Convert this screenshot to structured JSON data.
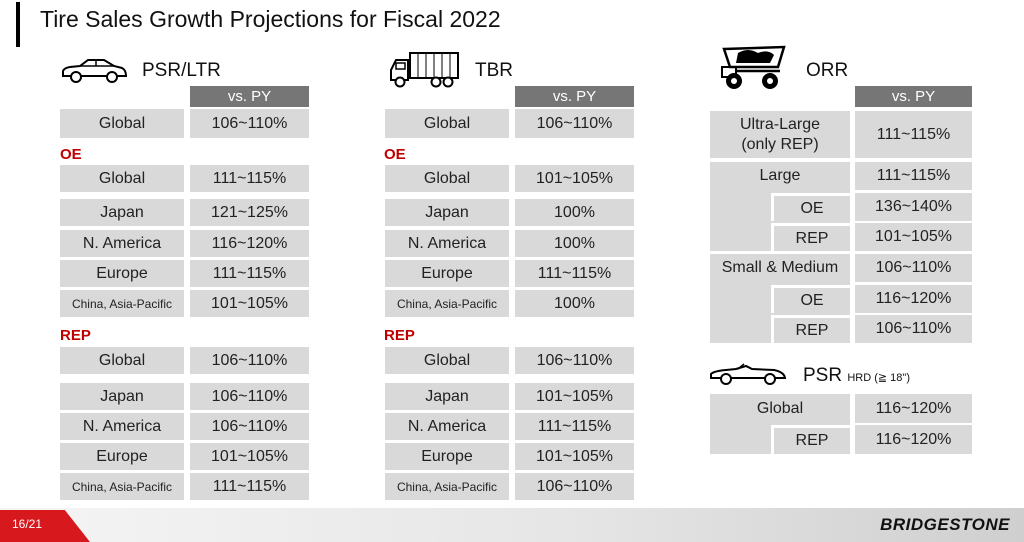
{
  "title": "Tire Sales Growth Projections for Fiscal 2022",
  "page_number": "16/21",
  "brand": "BRIDGESTONE",
  "colors": {
    "accent_red": "#c00000",
    "header_gray": "#767676",
    "cell_gray": "#d9d9d9"
  },
  "psr": {
    "heading": "PSR/LTR",
    "col_header": "vs. PY",
    "global_label": "Global",
    "global_value": "106~110%",
    "oe_label": "OE",
    "oe": [
      {
        "label": "Global",
        "value": "111~115%"
      },
      {
        "label": "Japan",
        "value": "121~125%"
      },
      {
        "label": "N. America",
        "value": "116~120%"
      },
      {
        "label": "Europe",
        "value": "111~115%"
      },
      {
        "label": "China, Asia-Pacific",
        "value": "101~105%"
      }
    ],
    "rep_label": "REP",
    "rep": [
      {
        "label": "Global",
        "value": "106~110%"
      },
      {
        "label": "Japan",
        "value": "106~110%"
      },
      {
        "label": "N. America",
        "value": "106~110%"
      },
      {
        "label": "Europe",
        "value": "101~105%"
      },
      {
        "label": "China, Asia-Pacific",
        "value": "111~115%"
      }
    ]
  },
  "tbr": {
    "heading": "TBR",
    "col_header": "vs. PY",
    "global_label": "Global",
    "global_value": "106~110%",
    "oe_label": "OE",
    "oe": [
      {
        "label": "Global",
        "value": "101~105%"
      },
      {
        "label": "Japan",
        "value": "100%"
      },
      {
        "label": "N. America",
        "value": "100%"
      },
      {
        "label": "Europe",
        "value": "111~115%"
      },
      {
        "label": "China, Asia-Pacific",
        "value": "100%"
      }
    ],
    "rep_label": "REP",
    "rep": [
      {
        "label": "Global",
        "value": "106~110%"
      },
      {
        "label": "Japan",
        "value": "101~105%"
      },
      {
        "label": "N. America",
        "value": "111~115%"
      },
      {
        "label": "Europe",
        "value": "101~105%"
      },
      {
        "label": "China, Asia-Pacific",
        "value": "106~110%"
      }
    ]
  },
  "orr": {
    "heading": "ORR",
    "col_header": "vs. PY",
    "ultra_label_1": "Ultra-Large",
    "ultra_label_2": "(only REP)",
    "ultra_value": "111~115%",
    "large_label": "Large",
    "large_value": "111~115%",
    "large_oe_label": "OE",
    "large_oe_value": "136~140%",
    "large_rep_label": "REP",
    "large_rep_value": "101~105%",
    "sm_label": "Small & Medium",
    "sm_value": "106~110%",
    "sm_oe_label": "OE",
    "sm_oe_value": "116~120%",
    "sm_rep_label": "REP",
    "sm_rep_value": "106~110%"
  },
  "psr_hrd": {
    "heading": "PSR",
    "heading_small": "HRD (≧ 18\")",
    "global_label": "Global",
    "global_value": "116~120%",
    "rep_label": "REP",
    "rep_value": "116~120%"
  }
}
